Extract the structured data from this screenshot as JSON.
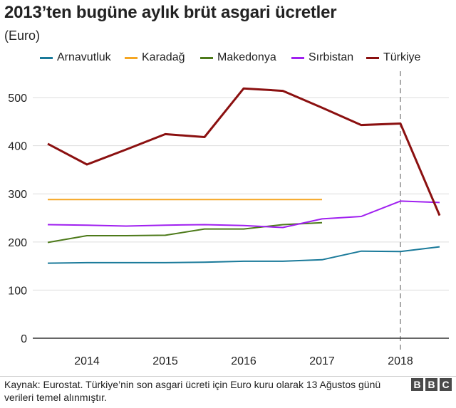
{
  "title": "2013’ten bugüne aylık brüt asgari ücretler",
  "subtitle": "(Euro)",
  "source": "Kaynak: Eurostat. Türkiye’nin son asgari ücreti için Euro kuru olarak 13 Ağustos günü verileri temel alınmıştır.",
  "logo": [
    "B",
    "B",
    "C"
  ],
  "chart_data": {
    "type": "line",
    "title": "2013’ten bugüne aylık brüt asgari ücretler",
    "ylabel": "(Euro)",
    "xlabel": "",
    "x": [
      "2013-07",
      "2014-01",
      "2014-07",
      "2015-01",
      "2015-07",
      "2016-01",
      "2016-07",
      "2017-01",
      "2017-07",
      "2018-01",
      "2018-07"
    ],
    "x_ticks": [
      "2014",
      "2015",
      "2016",
      "2017",
      "2018"
    ],
    "y_ticks": [
      0,
      100,
      200,
      300,
      400,
      500
    ],
    "ylim": [
      0,
      540
    ],
    "grid": true,
    "legend_position": "top",
    "reference_line": "2018-01",
    "series": [
      {
        "name": "Arnavutluk",
        "color": "#1a7a9a",
        "values": [
          156,
          157,
          157,
          157,
          158,
          160,
          160,
          163,
          181,
          180,
          190
        ]
      },
      {
        "name": "Karadağ",
        "color": "#f5a623",
        "values": [
          288,
          288,
          288,
          288,
          288,
          288,
          288,
          288,
          null,
          null,
          null
        ]
      },
      {
        "name": "Makedonya",
        "color": "#4d7a1a",
        "values": [
          199,
          213,
          213,
          214,
          227,
          227,
          236,
          240,
          null,
          null,
          null
        ]
      },
      {
        "name": "Sırbistan",
        "color": "#a020f0",
        "values": [
          236,
          235,
          233,
          235,
          236,
          234,
          230,
          248,
          253,
          285,
          282
        ]
      },
      {
        "name": "Türkiye",
        "color": "#8b1010",
        "values": [
          404,
          361,
          392,
          424,
          418,
          519,
          514,
          479,
          443,
          446,
          255
        ]
      }
    ]
  }
}
